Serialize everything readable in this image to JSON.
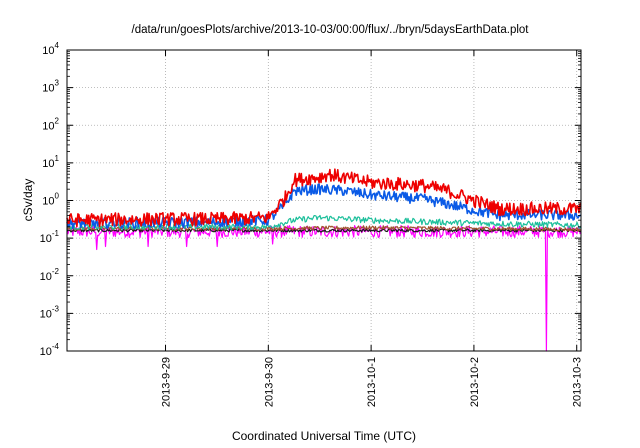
{
  "chart_data": {
    "type": "line",
    "title": "/data/run/goesPlots/archive/2013-10-03/00:00/flux/../bryn/5daysEarthData.plot",
    "xlabel": "Coordinated Universal Time (UTC)",
    "ylabel": "cSv/day",
    "yscale": "log",
    "ylim": [
      0.0001,
      10000
    ],
    "y_ticks": [
      {
        "value": 0.0001,
        "base": "10",
        "exp": "-4"
      },
      {
        "value": 0.001,
        "base": "10",
        "exp": "-3"
      },
      {
        "value": 0.01,
        "base": "10",
        "exp": "-2"
      },
      {
        "value": 0.1,
        "base": "10",
        "exp": "-1"
      },
      {
        "value": 1,
        "base": "10",
        "exp": "0"
      },
      {
        "value": 10,
        "base": "10",
        "exp": "1"
      },
      {
        "value": 100,
        "base": "10",
        "exp": "2"
      },
      {
        "value": 1000,
        "base": "10",
        "exp": "3"
      },
      {
        "value": 10000,
        "base": "10",
        "exp": "4"
      }
    ],
    "xlim": [
      "2013-09-28T01:00",
      "2013-10-03T01:00"
    ],
    "x_ticks": [
      {
        "value": "2013-09-29T00:00",
        "label": "2013-9-29"
      },
      {
        "value": "2013-09-30T00:00",
        "label": "2013-9-30"
      },
      {
        "value": "2013-10-01T00:00",
        "label": "2013-10-1"
      },
      {
        "value": "2013-10-02T00:00",
        "label": "2013-10-2"
      },
      {
        "value": "2013-10-03T00:00",
        "label": "2013-10-3"
      }
    ],
    "grid": true,
    "series": [
      {
        "color": "#ee0000",
        "noise": 0.18,
        "points": [
          [
            "2013-09-28T01:00",
            0.3
          ],
          [
            "2013-09-29T00:00",
            0.32
          ],
          [
            "2013-09-29T12:00",
            0.32
          ],
          [
            "2013-09-30T00:00",
            0.35
          ],
          [
            "2013-09-30T04:00",
            1.2
          ],
          [
            "2013-09-30T06:00",
            3.5
          ],
          [
            "2013-09-30T12:00",
            4.2
          ],
          [
            "2013-09-30T14:00",
            5.0
          ],
          [
            "2013-09-30T18:00",
            4.0
          ],
          [
            "2013-10-01T00:00",
            3.0
          ],
          [
            "2013-10-01T12:00",
            2.5
          ],
          [
            "2013-10-01T18:00",
            1.8
          ],
          [
            "2013-10-02T00:00",
            1.0
          ],
          [
            "2013-10-02T06:00",
            0.6
          ],
          [
            "2013-10-02T12:00",
            0.6
          ],
          [
            "2013-10-03T01:00",
            0.6
          ]
        ]
      },
      {
        "color": "#0a5ae6",
        "noise": 0.14,
        "points": [
          [
            "2013-09-28T01:00",
            0.25
          ],
          [
            "2013-09-29T00:00",
            0.26
          ],
          [
            "2013-09-29T12:00",
            0.27
          ],
          [
            "2013-09-30T00:00",
            0.3
          ],
          [
            "2013-09-30T04:00",
            0.8
          ],
          [
            "2013-09-30T06:00",
            1.8
          ],
          [
            "2013-09-30T12:00",
            2.0
          ],
          [
            "2013-09-30T18:00",
            1.8
          ],
          [
            "2013-10-01T00:00",
            1.4
          ],
          [
            "2013-10-01T12:00",
            1.1
          ],
          [
            "2013-10-01T18:00",
            0.8
          ],
          [
            "2013-10-02T00:00",
            0.55
          ],
          [
            "2013-10-02T06:00",
            0.4
          ],
          [
            "2013-10-02T12:00",
            0.42
          ],
          [
            "2013-10-03T01:00",
            0.4
          ]
        ]
      },
      {
        "color": "#1cbf9b",
        "noise": 0.08,
        "points": [
          [
            "2013-09-28T01:00",
            0.2
          ],
          [
            "2013-09-29T00:00",
            0.2
          ],
          [
            "2013-09-30T00:00",
            0.2
          ],
          [
            "2013-09-30T06:00",
            0.3
          ],
          [
            "2013-09-30T12:00",
            0.35
          ],
          [
            "2013-10-01T00:00",
            0.3
          ],
          [
            "2013-10-02T00:00",
            0.25
          ],
          [
            "2013-10-03T01:00",
            0.22
          ]
        ]
      },
      {
        "color": "#a0522d",
        "noise": 0.05,
        "points": [
          [
            "2013-09-28T01:00",
            0.18
          ],
          [
            "2013-09-30T00:00",
            0.18
          ],
          [
            "2013-10-01T00:00",
            0.19
          ],
          [
            "2013-10-03T01:00",
            0.17
          ]
        ]
      },
      {
        "color": "#1a1a1a",
        "noise": 0.04,
        "points": [
          [
            "2013-09-28T01:00",
            0.16
          ],
          [
            "2013-10-03T01:00",
            0.16
          ]
        ]
      },
      {
        "color": "#ff00ff",
        "noise": 0.16,
        "points": [
          [
            "2013-09-28T01:00",
            0.15
          ],
          [
            "2013-10-01T00:00",
            0.15
          ],
          [
            "2013-10-03T01:00",
            0.15
          ]
        ],
        "dips": [
          {
            "x": "2013-09-28T08:00",
            "y": 0.05
          },
          {
            "x": "2013-09-28T10:00",
            "y": 0.06
          },
          {
            "x": "2013-09-28T20:00",
            "y": 0.06
          },
          {
            "x": "2013-09-29T05:00",
            "y": 0.06
          },
          {
            "x": "2013-09-29T12:00",
            "y": 0.06
          },
          {
            "x": "2013-09-30T01:00",
            "y": 0.07
          },
          {
            "x": "2013-10-02T17:00",
            "y": 0.0001
          }
        ]
      }
    ]
  }
}
